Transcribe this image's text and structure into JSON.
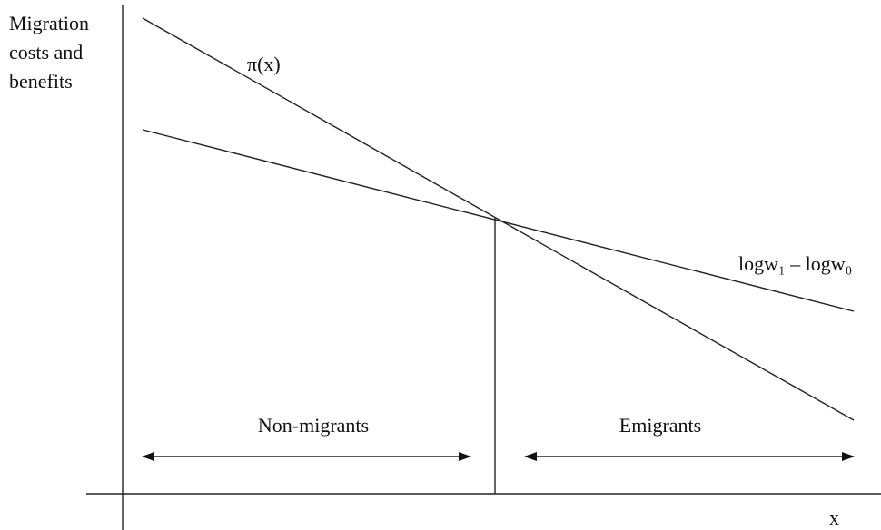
{
  "y_axis_label": [
    "Migration",
    "costs and",
    "benefits"
  ],
  "curves": {
    "pi": "π(x)",
    "wage_gap": "logw₁ – logw₀"
  },
  "regions": {
    "left": "Non-migrants",
    "right": "Emigrants"
  },
  "x_axis_label": "x"
}
